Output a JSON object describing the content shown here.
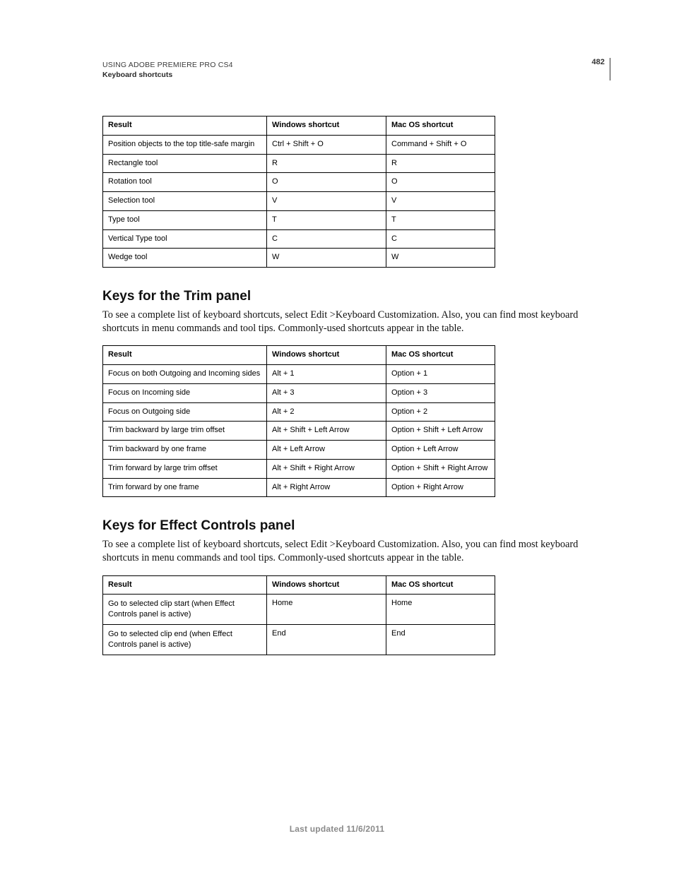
{
  "page": {
    "running_head": "USING ADOBE PREMIERE PRO CS4",
    "running_sub": "Keyboard shortcuts",
    "number": "482",
    "footer": "Last updated 11/6/2011"
  },
  "table1": {
    "headers": {
      "result": "Result",
      "win": "Windows shortcut",
      "mac": "Mac OS shortcut"
    },
    "rows": [
      {
        "result": "Position objects to the top title-safe margin",
        "win": "Ctrl + Shift + O",
        "mac": "Command + Shift + O"
      },
      {
        "result": "Rectangle tool",
        "win": "R",
        "mac": "R"
      },
      {
        "result": "Rotation tool",
        "win": "O",
        "mac": "O"
      },
      {
        "result": "Selection tool",
        "win": "V",
        "mac": "V"
      },
      {
        "result": "Type tool",
        "win": "T",
        "mac": "T"
      },
      {
        "result": "Vertical Type tool",
        "win": "C",
        "mac": "C"
      },
      {
        "result": "Wedge tool",
        "win": "W",
        "mac": "W"
      }
    ]
  },
  "section_trim": {
    "heading": "Keys for the Trim panel",
    "intro": "To see a complete list of keyboard shortcuts, select Edit >Keyboard Customization. Also, you can find most keyboard shortcuts in menu commands and tool tips. Commonly-used shortcuts appear in the table."
  },
  "table2": {
    "headers": {
      "result": "Result",
      "win": "Windows shortcut",
      "mac": "Mac OS shortcut"
    },
    "rows": [
      {
        "result": "Focus on both Outgoing and Incoming sides",
        "win": "Alt + 1",
        "mac": "Option + 1"
      },
      {
        "result": "Focus on Incoming side",
        "win": "Alt + 3",
        "mac": "Option + 3"
      },
      {
        "result": "Focus on Outgoing side",
        "win": "Alt + 2",
        "mac": "Option + 2"
      },
      {
        "result": "Trim backward by large trim offset",
        "win": "Alt + Shift + Left Arrow",
        "mac": "Option + Shift + Left Arrow"
      },
      {
        "result": "Trim backward by one frame",
        "win": "Alt + Left Arrow",
        "mac": "Option + Left Arrow"
      },
      {
        "result": "Trim forward by large trim offset",
        "win": "Alt + Shift + Right Arrow",
        "mac": "Option + Shift + Right Arrow"
      },
      {
        "result": "Trim forward by one frame",
        "win": "Alt + Right Arrow",
        "mac": "Option + Right Arrow"
      }
    ]
  },
  "section_fx": {
    "heading": "Keys for Effect Controls panel",
    "intro": "To see a complete list of keyboard shortcuts, select Edit >Keyboard Customization. Also, you can find most keyboard shortcuts in menu commands and tool tips. Commonly-used shortcuts appear in the table."
  },
  "table3": {
    "headers": {
      "result": "Result",
      "win": "Windows shortcut",
      "mac": "Mac OS shortcut"
    },
    "rows": [
      {
        "result": "Go to selected clip start (when Effect Controls panel is active)",
        "win": "Home",
        "mac": "Home"
      },
      {
        "result": "Go to selected clip end (when Effect Controls panel is active)",
        "win": "End",
        "mac": "End"
      }
    ]
  }
}
